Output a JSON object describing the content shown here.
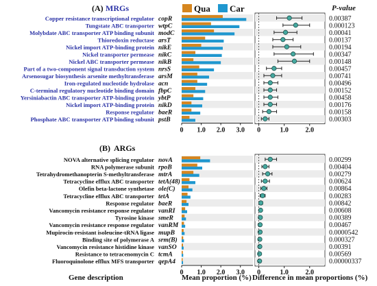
{
  "colors": {
    "qua": "#d6861f",
    "car": "#1f97cf",
    "dot": "#45a9a0",
    "desc_mrg": "#2b33a6",
    "desc_arg": "#111111",
    "stripe": "#ececec"
  },
  "legend": {
    "qua": "Qua",
    "car": "Car"
  },
  "pvalue_header": "P-value",
  "footer": {
    "gene_description": "Gene description",
    "mean_proportion": "Mean proportion (%)",
    "difference": "Difference in mean proportions (%)"
  },
  "chart_data": [
    {
      "type": "bar",
      "panel_label": "(A)",
      "title": "MRGs",
      "xlim": [
        0,
        3.5
      ],
      "xticks": [
        "0",
        "1.0",
        "2.0",
        "3.0"
      ],
      "diff_xlim": [
        -0.15,
        2.6
      ],
      "diff_xticks": [
        "0",
        "1.0",
        "2.0"
      ],
      "rows": [
        {
          "desc": "Copper resistance transcriptional regulator",
          "gene": "copR",
          "qua": 2.1,
          "car": 3.3,
          "diff": 1.2,
          "ci": [
            0.7,
            1.7
          ],
          "p": "0.00387"
        },
        {
          "desc": "Tungstate ABC transporter",
          "gene": "wtpC",
          "qua": 1.5,
          "car": 2.95,
          "diff": 1.45,
          "ci": [
            0.95,
            2.0
          ],
          "p": "0.000123"
        },
        {
          "desc": "Molybdate ABC transporter ATP binding subunit",
          "gene": "modC",
          "qua": 1.65,
          "car": 2.7,
          "diff": 1.05,
          "ci": [
            0.6,
            1.5
          ],
          "p": "0.00041"
        },
        {
          "desc": "Thioredoxin reductase",
          "gene": "arsT",
          "qua": 1.2,
          "car": 2.15,
          "diff": 0.95,
          "ci": [
            0.55,
            1.35
          ],
          "p": "0.00137"
        },
        {
          "desc": "Nickel import ATP-binding protein",
          "gene": "nikE",
          "qua": 1.0,
          "car": 2.1,
          "diff": 1.1,
          "ci": [
            0.55,
            1.65
          ],
          "p": "0.00194"
        },
        {
          "desc": "Nickel transporter permease",
          "gene": "nikC",
          "qua": 0.7,
          "car": 2.05,
          "diff": 1.35,
          "ci": [
            0.6,
            2.15
          ],
          "p": "0.00347"
        },
        {
          "desc": "Nickel ABC transporter permease",
          "gene": "nikB",
          "qua": 0.6,
          "car": 2.0,
          "diff": 1.4,
          "ci": [
            0.75,
            2.0
          ],
          "p": "0.00148"
        },
        {
          "desc": "Part of a two-component signal transduction system",
          "gene": "nrsS",
          "qua": 0.9,
          "car": 1.65,
          "diff": 0.6,
          "ci": [
            0.3,
            0.9
          ],
          "p": "0.00457"
        },
        {
          "desc": "Arsenosugar biosynthesis arsenite methyltransferase",
          "gene": "arsM",
          "qua": 0.8,
          "car": 1.4,
          "diff": 0.55,
          "ci": [
            0.2,
            0.9
          ],
          "p": "0.00741"
        },
        {
          "desc": "Iron-regulated nucleotide hydrolase",
          "gene": "acn",
          "qua": 0.8,
          "car": 1.3,
          "diff": 0.45,
          "ci": [
            0.2,
            0.75
          ],
          "p": "0.00496"
        },
        {
          "desc": "C-terminal regulatory nucleotide binding domain",
          "gene": "fbpC",
          "qua": 0.7,
          "car": 1.2,
          "diff": 0.45,
          "ci": [
            0.2,
            0.7
          ],
          "p": "0.00152"
        },
        {
          "desc": "Yersiniabactin ABC transporter ATP-binding protein",
          "gene": "ybtP",
          "qua": 0.6,
          "car": 1.1,
          "diff": 0.45,
          "ci": [
            0.2,
            0.75
          ],
          "p": "0.00458"
        },
        {
          "desc": "Nickel import ATP-binding protein",
          "gene": "nikD",
          "qua": 0.5,
          "car": 1.05,
          "diff": 0.45,
          "ci": [
            0.2,
            0.7
          ],
          "p": "0.00176"
        },
        {
          "desc": "Response regulator",
          "gene": "baeR",
          "qua": 0.5,
          "car": 0.95,
          "diff": 0.4,
          "ci": [
            0.15,
            0.7
          ],
          "p": "0.00158"
        },
        {
          "desc": "Phosphate ABC transporter ATP binding subunit",
          "gene": "pstB",
          "qua": 0.4,
          "car": 0.7,
          "diff": 0.25,
          "ci": [
            0.1,
            0.4
          ],
          "p": "0.00303"
        }
      ]
    },
    {
      "type": "bar",
      "panel_label": "(B)",
      "title": "ARGs",
      "xlim": [
        0,
        3.5
      ],
      "xticks": [
        "0",
        "1.0",
        "2.0",
        "3.0"
      ],
      "diff_xlim": [
        -0.15,
        2.6
      ],
      "diff_xticks": [
        "0",
        "1.0",
        "2.0"
      ],
      "rows": [
        {
          "desc": "NOVA alternative splicing regulator",
          "gene": "novA",
          "qua": 0.95,
          "car": 1.45,
          "diff": 0.45,
          "ci": [
            0.25,
            0.7
          ],
          "p": "0.00299"
        },
        {
          "desc": "RNA polymerase subunit",
          "gene": "rpoB",
          "qua": 0.8,
          "car": 1.05,
          "diff": 0.25,
          "ci": [
            0.12,
            0.4
          ],
          "p": "0.00404"
        },
        {
          "desc": "Tetrahydromethanopterin S-methyltransferase",
          "gene": "mtrA",
          "qua": 0.6,
          "car": 0.9,
          "diff": 0.35,
          "ci": [
            0.15,
            0.52
          ],
          "p": "0.00279"
        },
        {
          "desc": "Tetracycline efflux ABC transporter",
          "gene": "tetA(48)",
          "qua": 0.4,
          "car": 0.7,
          "diff": 0.25,
          "ci": [
            0.1,
            0.42
          ],
          "p": "0.00624"
        },
        {
          "desc": "Olefin beta-lactone synthetase",
          "gene": "ole(C)",
          "qua": 0.35,
          "car": 0.55,
          "diff": 0.2,
          "ci": [
            0.08,
            0.32
          ],
          "p": "0.00864"
        },
        {
          "desc": "Tetracycline efflux ABC transporter",
          "gene": "tetA",
          "qua": 0.3,
          "car": 0.45,
          "diff": 0.15,
          "ci": [
            0.05,
            0.25
          ],
          "p": "0.00283"
        },
        {
          "desc": "Response regulator",
          "gene": "baeR",
          "qua": 0.25,
          "car": 0.35,
          "diff": 0.08,
          "ci": [
            0.02,
            0.15
          ],
          "p": "0.00842"
        },
        {
          "desc": "Vancomycin resistance response regulator",
          "gene": "vanRI",
          "qua": 0.18,
          "car": 0.28,
          "diff": 0.07,
          "ci": [
            0.02,
            0.12
          ],
          "p": "0.00608"
        },
        {
          "desc": "Tyrosine kinase",
          "gene": "smeR",
          "qua": 0.15,
          "car": 0.22,
          "diff": 0.06,
          "ci": [
            0.02,
            0.1
          ],
          "p": "0.00389"
        },
        {
          "desc": "Vancomycin resistance response regulator",
          "gene": "vanRM",
          "qua": 0.12,
          "car": 0.18,
          "diff": 0.05,
          "ci": [
            0.02,
            0.09
          ],
          "p": "0.00467"
        },
        {
          "desc": "Mupirocin-resistant isoleucine-tRNA ligase",
          "gene": "mupB",
          "qua": 0.1,
          "car": 0.15,
          "diff": 0.05,
          "ci": [
            0.02,
            0.08
          ],
          "p": "0.0000542"
        },
        {
          "desc": "Binding site of polymerase A",
          "gene": "srm(B)",
          "qua": 0.08,
          "car": 0.12,
          "diff": 0.04,
          "ci": [
            0.01,
            0.07
          ],
          "p": "0.000327"
        },
        {
          "desc": "Vancomycin resistance histidine kinase",
          "gene": "vanSO",
          "qua": 0.07,
          "car": 0.1,
          "diff": 0.04,
          "ci": [
            0.01,
            0.07
          ],
          "p": "0.00391"
        },
        {
          "desc": "Resistance to tetracenomycin C",
          "gene": "tcmA",
          "qua": 0.06,
          "car": 0.08,
          "diff": 0.03,
          "ci": [
            0.01,
            0.05
          ],
          "p": "0.00569"
        },
        {
          "desc": "Fluoroquinolone efflux MFS transporter",
          "gene": "qepA4",
          "qua": 0.05,
          "car": 0.07,
          "diff": 0.03,
          "ci": [
            0.01,
            0.05
          ],
          "p": "0.00000337"
        }
      ]
    }
  ]
}
